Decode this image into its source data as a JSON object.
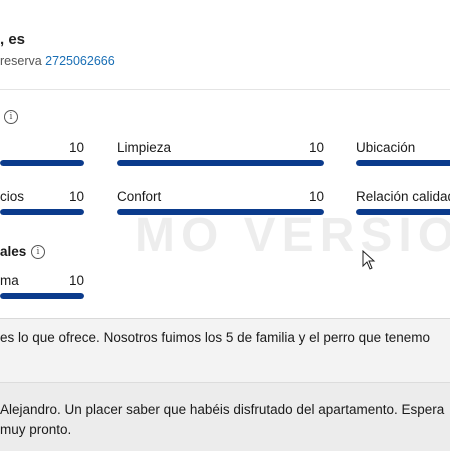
{
  "header": {
    "title": ", es",
    "reservation_label": "reserva",
    "reservation_number": "2725062666"
  },
  "ratings": [
    {
      "label": "",
      "value": "10",
      "score": 10
    },
    {
      "label": "Limpieza",
      "value": "10",
      "score": 10
    },
    {
      "label": "Ubicación",
      "value": "",
      "score": 10
    },
    {
      "label": "cios",
      "value": "10",
      "score": 10
    },
    {
      "label": "Confort",
      "value": "10",
      "score": 10
    },
    {
      "label": "Relación calidad",
      "value": "",
      "score": 10
    },
    {
      "label": "ma",
      "value": "10",
      "score": 10
    }
  ],
  "section2_title": "ales",
  "review_text": "es lo que ofrece. Nosotros fuimos los 5 de familia y el perro que tenemo",
  "reply": {
    "line1": "Alejandro. Un placer saber que habéis disfrutado del apartamento. Espera",
    "line2": "muy pronto."
  },
  "watermark": "MO VERSIO",
  "colors": {
    "bar_fill": "#0b3b8c",
    "link": "#1a6fb5"
  },
  "icons": [
    "info-icon",
    "mouse-cursor-icon"
  ]
}
